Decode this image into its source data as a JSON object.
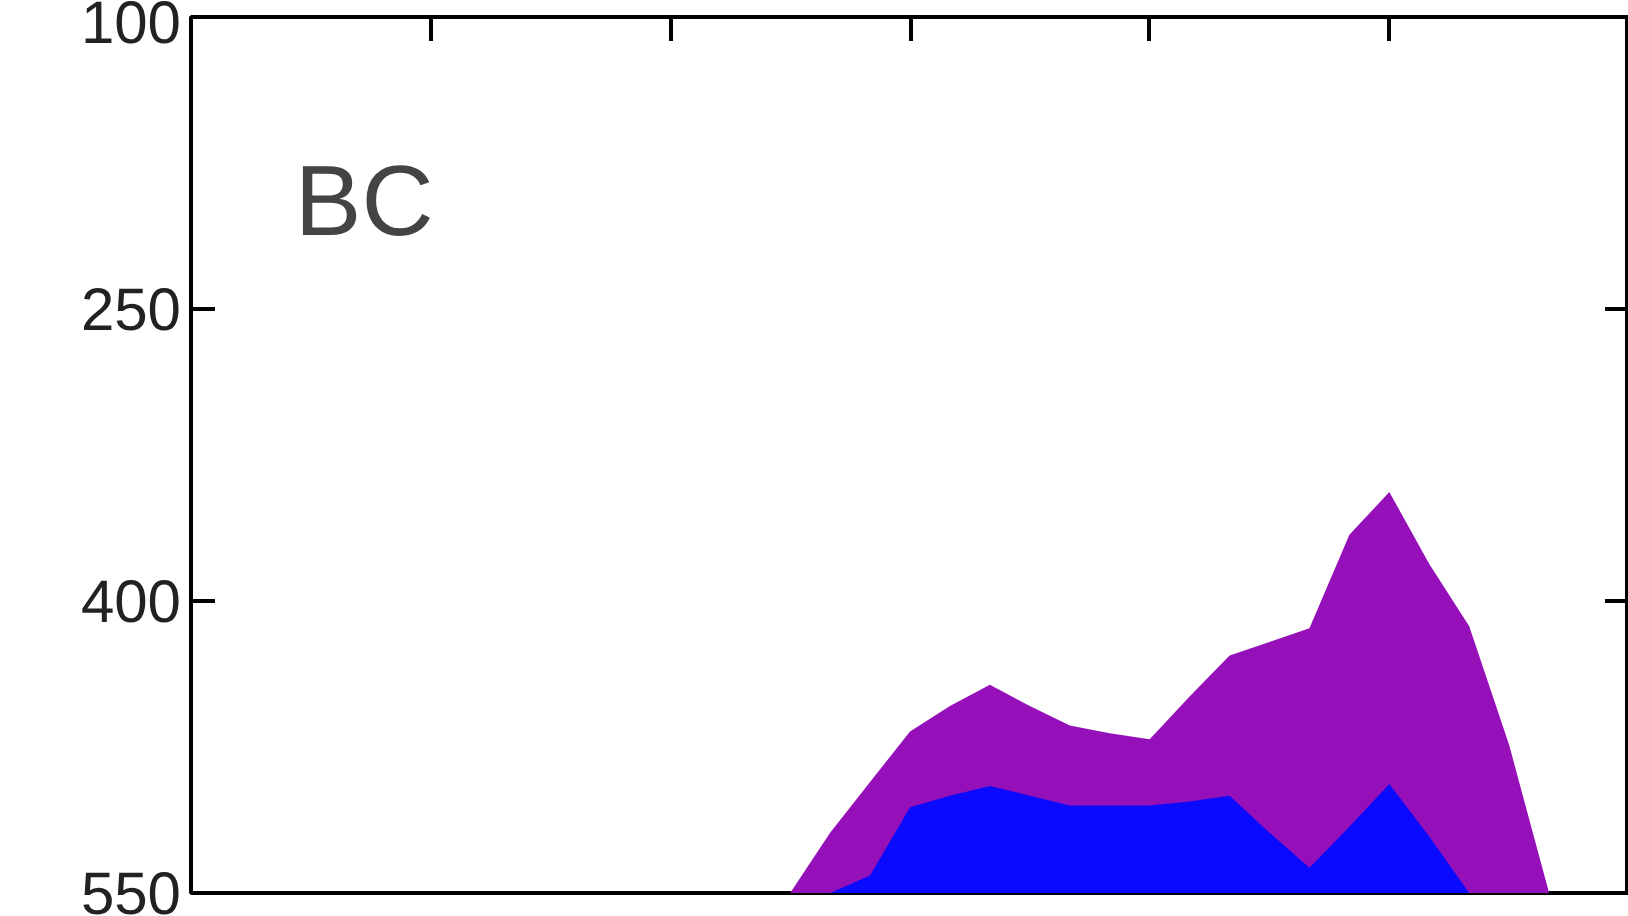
{
  "chart_data": {
    "type": "area",
    "categories": [
      null,
      null,
      null,
      null,
      null,
      null,
      null,
      null,
      null,
      null,
      null,
      null,
      null,
      null,
      null,
      null,
      null,
      null,
      null,
      null,
      null,
      null,
      null,
      null,
      null,
      null,
      null,
      null,
      null,
      null,
      null,
      null,
      null,
      null,
      null,
      null
    ],
    "series": [
      {
        "color": "#9510b8",
        "values": [
          550,
          550,
          550,
          550,
          550,
          550,
          550,
          550,
          550,
          550,
          550,
          550,
          550,
          550,
          550,
          550,
          519,
          493,
          467,
          454,
          443,
          454,
          464,
          468,
          471,
          449,
          428,
          421,
          414,
          366,
          344,
          381,
          413,
          474,
          550,
          550
        ]
      },
      {
        "color": "#0a0aff",
        "values": [
          550,
          550,
          550,
          550,
          550,
          550,
          550,
          550,
          550,
          550,
          550,
          550,
          550,
          550,
          550,
          550,
          550,
          541,
          506,
          500,
          495,
          500,
          505,
          505,
          505,
          503,
          500,
          519,
          537,
          516,
          494,
          521,
          550,
          550,
          550,
          550
        ]
      }
    ],
    "ylim": [
      550,
      100
    ],
    "yticks": [
      100,
      250,
      400,
      550
    ],
    "tick_labels": "y",
    "grid": false,
    "annotations": [
      {
        "text": "BC"
      }
    ]
  }
}
